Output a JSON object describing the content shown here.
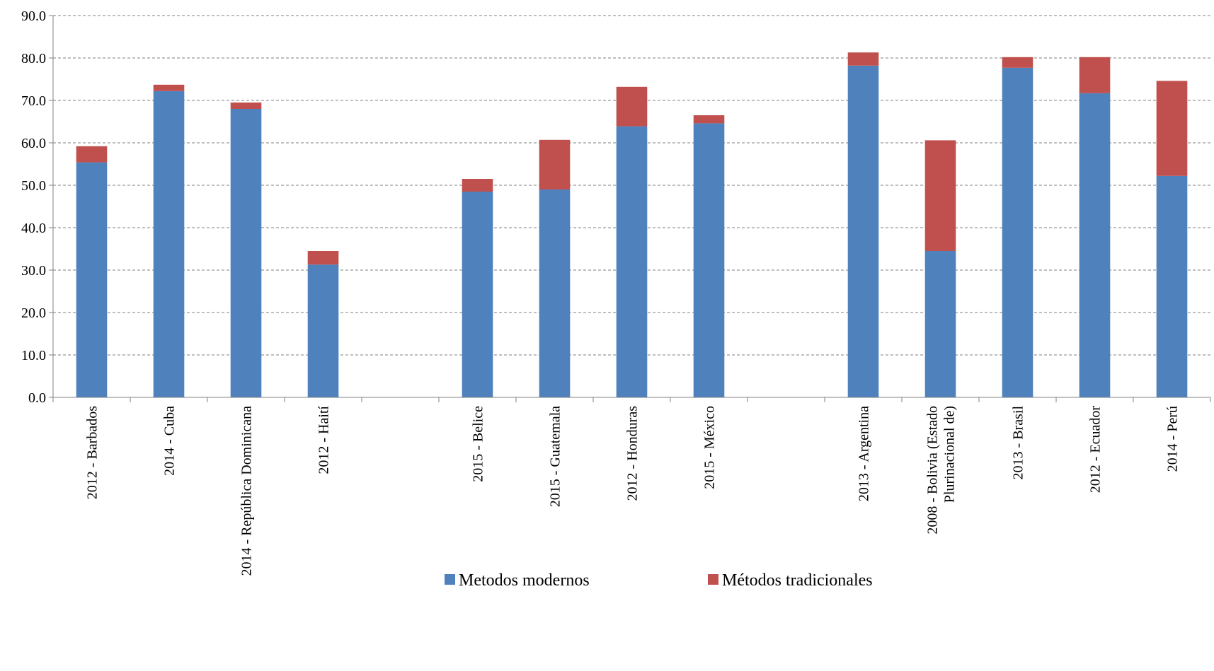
{
  "chart_data": {
    "type": "bar",
    "stacked": true,
    "title": "",
    "xlabel": "",
    "ylabel": "",
    "ylim": [
      0,
      90
    ],
    "yticks": [
      "0.0",
      "10.0",
      "20.0",
      "30.0",
      "40.0",
      "50.0",
      "60.0",
      "70.0",
      "80.0",
      "90.0"
    ],
    "grid": true,
    "legend_position": "bottom",
    "categories": [
      [
        "2012 - Barbados"
      ],
      [
        "2014 - Cuba"
      ],
      [
        "2014 - República Dominicana"
      ],
      [
        "2012 - Haití"
      ],
      [],
      [
        "2015 - Belice"
      ],
      [
        "2015 - Guatemala"
      ],
      [
        "2012 - Honduras"
      ],
      [
        "2015 - México"
      ],
      [],
      [
        "2013 - Argentina"
      ],
      [
        "2008 - Bolivia (Estado",
        "Plurinacional de)"
      ],
      [
        "2013 - Brasil"
      ],
      [
        "2012 - Ecuador"
      ],
      [
        "2014 - Perú"
      ]
    ],
    "series": [
      {
        "name": "Metodos modernos",
        "color": "#4F81BD",
        "values": [
          55.4,
          72.2,
          68.0,
          31.3,
          null,
          48.5,
          49.0,
          63.9,
          64.6,
          null,
          78.2,
          34.5,
          77.7,
          71.7,
          52.2
        ]
      },
      {
        "name": "Métodos tradicionales",
        "color": "#C0504D",
        "values": [
          3.8,
          1.5,
          1.5,
          3.2,
          null,
          3.0,
          11.7,
          9.3,
          1.9,
          null,
          3.1,
          26.1,
          2.5,
          8.5,
          22.4
        ]
      }
    ]
  }
}
